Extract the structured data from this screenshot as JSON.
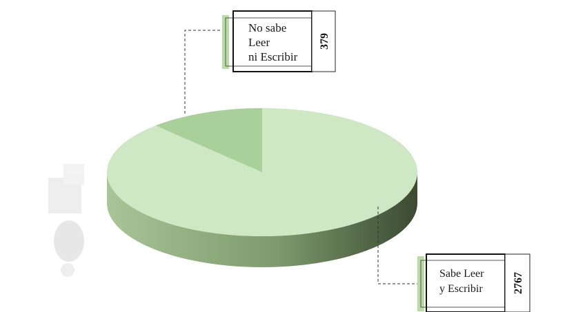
{
  "chart_data": {
    "type": "pie",
    "style": "3d",
    "slices": [
      {
        "label_lines": [
          "No sabe",
          "Leer",
          "ni Escribir"
        ],
        "value": 379,
        "color": "#a9cf9b"
      },
      {
        "label_lines": [
          "Sabe Leer",
          "y Escribir"
        ],
        "value": 2767,
        "color": "#cfe8c4"
      }
    ]
  },
  "colors": {
    "side_dark": "#3f4f35",
    "side_light": "#93b083",
    "accent_green": "#b9dca5"
  }
}
